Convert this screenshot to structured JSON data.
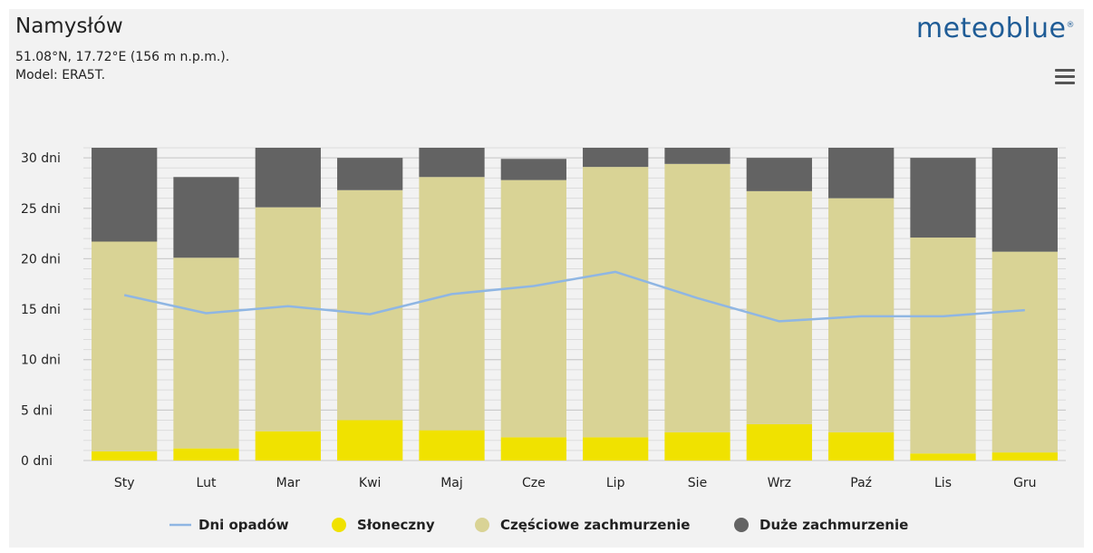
{
  "header": {
    "location": "Namysłów",
    "coords": "51.08°N, 17.72°E (156 m n.p.m.).",
    "model": "Model: ERA5T.",
    "brand": "meteoblue",
    "brand_mark": "®"
  },
  "menu_icon": "hamburger-menu-icon",
  "colors": {
    "sunny": "#f0e200",
    "partly": "#d9d395",
    "overcast": "#636363",
    "precip": "#8fb6e3",
    "brand": "#1f5c96"
  },
  "chart_data": {
    "type": "bar",
    "stacked": true,
    "categories": [
      "Sty",
      "Lut",
      "Mar",
      "Kwi",
      "Maj",
      "Cze",
      "Lip",
      "Sie",
      "Wrz",
      "Paź",
      "Lis",
      "Gru"
    ],
    "series": [
      {
        "name": "Słoneczny",
        "type": "bar",
        "values": [
          0.9,
          1.2,
          2.9,
          4.0,
          3.0,
          2.3,
          2.3,
          2.8,
          3.6,
          2.8,
          0.7,
          0.8
        ]
      },
      {
        "name": "Częściowe zachmurzenie",
        "type": "bar",
        "values": [
          20.8,
          18.9,
          22.2,
          22.8,
          25.1,
          25.5,
          26.8,
          26.6,
          23.1,
          23.2,
          21.4,
          19.9
        ]
      },
      {
        "name": "Duże zachmurzenie",
        "type": "bar",
        "values": [
          9.3,
          8.0,
          5.9,
          3.2,
          2.9,
          2.1,
          1.9,
          1.6,
          3.3,
          5.0,
          7.9,
          10.3
        ]
      },
      {
        "name": "Dni opadów",
        "type": "line",
        "values": [
          16.4,
          14.6,
          15.3,
          14.5,
          16.5,
          17.3,
          18.7,
          16.1,
          13.8,
          14.3,
          14.3,
          14.9
        ]
      }
    ],
    "ylim": [
      0,
      31
    ],
    "yticks": [
      {
        "v": 0,
        "label": "0 dni"
      },
      {
        "v": 5,
        "label": "5 dni"
      },
      {
        "v": 10,
        "label": "10 dni"
      },
      {
        "v": 15,
        "label": "15 dni"
      },
      {
        "v": 20,
        "label": "20 dni"
      },
      {
        "v": 25,
        "label": "25 dni"
      },
      {
        "v": 30,
        "label": "30 dni"
      }
    ],
    "minor_grid_step": 1,
    "legend": {
      "position": "bottom",
      "items": [
        {
          "label": "Dni opadów",
          "marker": "line",
          "color": "#8fb6e3"
        },
        {
          "label": "Słoneczny",
          "marker": "dot",
          "color": "#f0e200"
        },
        {
          "label": "Częściowe zachmurzenie",
          "marker": "dot",
          "color": "#d9d395"
        },
        {
          "label": "Duże zachmurzenie",
          "marker": "dot",
          "color": "#636363"
        }
      ]
    }
  }
}
